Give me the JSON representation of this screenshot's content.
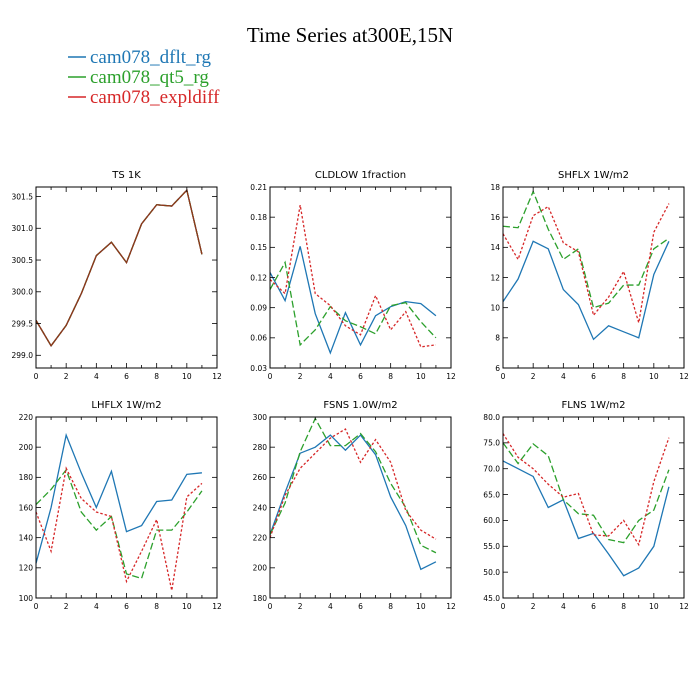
{
  "figure": {
    "title": "Time Series at300E,15N",
    "legend": [
      {
        "name": "cam078_dflt_rg",
        "color": "#1f77b4",
        "dash": "solid"
      },
      {
        "name": "cam078_qt5_rg",
        "color": "#2ca02c",
        "dash": "dashed"
      },
      {
        "name": "cam078_expldiff",
        "color": "#d62728",
        "dash": "dotted"
      }
    ]
  },
  "chart_data": [
    {
      "type": "line",
      "title": "TS   1K",
      "xlim": [
        0,
        12
      ],
      "xticks": [
        "0",
        "2",
        "4",
        "6",
        "8",
        "10",
        "12"
      ],
      "ylim": [
        298.8,
        301.65
      ],
      "yticks": [
        299.0,
        299.5,
        300.0,
        300.5,
        301.0,
        301.5
      ],
      "yticklabels": [
        "299.0",
        "299.5",
        "300.0",
        "300.5",
        "301.0",
        "301.5"
      ],
      "x": [
        0,
        1,
        2,
        3,
        4,
        5,
        6,
        7,
        8,
        9,
        10,
        11
      ],
      "series": [
        {
          "color": "#1f77b4",
          "values": [
            299.55,
            299.15,
            299.47,
            299.97,
            300.57,
            300.78,
            300.46,
            301.07,
            301.37,
            301.35,
            301.6,
            300.59
          ]
        },
        {
          "color": "#2ca02c",
          "values": [
            299.55,
            299.15,
            299.47,
            299.97,
            300.57,
            300.78,
            300.46,
            301.07,
            301.37,
            301.35,
            301.6,
            300.59
          ]
        },
        {
          "color": "#d62728",
          "values": [
            299.55,
            299.15,
            299.47,
            299.97,
            300.57,
            300.78,
            300.46,
            301.07,
            301.37,
            301.35,
            301.6,
            300.59
          ]
        },
        {
          "color": "#8b3a1a",
          "values": [
            299.55,
            299.15,
            299.47,
            299.97,
            300.57,
            300.78,
            300.46,
            301.07,
            301.37,
            301.35,
            301.6,
            300.59
          ]
        }
      ]
    },
    {
      "type": "line",
      "title": "CLDLOW   1fraction",
      "xlim": [
        0,
        12
      ],
      "xticks": [
        "0",
        "2",
        "4",
        "6",
        "8",
        "10",
        "12"
      ],
      "ylim": [
        0.03,
        0.21
      ],
      "yticks": [
        0.03,
        0.06,
        0.09,
        0.12,
        0.15,
        0.18,
        0.21
      ],
      "yticklabels": [
        "0.03",
        "0.06",
        "0.09",
        "0.12",
        "0.15",
        "0.18",
        "0.21"
      ],
      "x": [
        0,
        1,
        2,
        3,
        4,
        5,
        6,
        7,
        8,
        9,
        10,
        11
      ],
      "series": [
        {
          "color": "#1f77b4",
          "values": [
            0.125,
            0.097,
            0.151,
            0.084,
            0.045,
            0.085,
            0.053,
            0.082,
            0.091,
            0.096,
            0.094,
            0.082
          ]
        },
        {
          "color": "#2ca02c",
          "values": [
            0.108,
            0.135,
            0.053,
            0.068,
            0.091,
            0.077,
            0.071,
            0.064,
            0.092,
            0.095,
            0.076,
            0.06
          ]
        },
        {
          "color": "#d62728",
          "values": [
            0.118,
            0.104,
            0.192,
            0.104,
            0.092,
            0.072,
            0.063,
            0.102,
            0.068,
            0.086,
            0.051,
            0.053
          ]
        }
      ]
    },
    {
      "type": "line",
      "title": "SHFLX   1W/m2",
      "xlim": [
        0,
        12
      ],
      "xticks": [
        "0",
        "2",
        "4",
        "6",
        "8",
        "10",
        "12"
      ],
      "ylim": [
        6,
        18
      ],
      "yticks": [
        6,
        8,
        10,
        12,
        14,
        16,
        18
      ],
      "yticklabels": [
        "6",
        "8",
        "10",
        "12",
        "14",
        "16",
        "18"
      ],
      "x": [
        0,
        1,
        2,
        3,
        4,
        5,
        6,
        7,
        8,
        9,
        10,
        11
      ],
      "series": [
        {
          "color": "#1f77b4",
          "values": [
            10.4,
            11.9,
            14.4,
            13.9,
            11.2,
            10.2,
            7.9,
            8.8,
            8.4,
            8.0,
            12.2,
            14.4
          ]
        },
        {
          "color": "#2ca02c",
          "values": [
            15.4,
            15.3,
            17.7,
            15.2,
            13.2,
            13.9,
            10.0,
            10.3,
            11.5,
            11.5,
            13.9,
            14.6
          ]
        },
        {
          "color": "#d62728",
          "values": [
            14.9,
            13.2,
            16.1,
            16.7,
            14.3,
            13.7,
            9.5,
            10.7,
            12.4,
            9.0,
            15.0,
            16.9
          ]
        }
      ]
    },
    {
      "type": "line",
      "title": "LHFLX   1W/m2",
      "xlim": [
        0,
        12
      ],
      "xticks": [
        "0",
        "2",
        "4",
        "6",
        "8",
        "10",
        "12"
      ],
      "ylim": [
        100,
        220
      ],
      "yticks": [
        100,
        120,
        140,
        160,
        180,
        200,
        220
      ],
      "yticklabels": [
        "100",
        "120",
        "140",
        "160",
        "180",
        "200",
        "220"
      ],
      "x": [
        0,
        1,
        2,
        3,
        4,
        5,
        6,
        7,
        8,
        9,
        10,
        11
      ],
      "series": [
        {
          "color": "#1f77b4",
          "values": [
            123,
            160,
            208,
            183,
            160,
            184,
            144,
            148,
            164,
            165,
            182,
            183
          ]
        },
        {
          "color": "#2ca02c",
          "values": [
            162,
            172,
            185,
            157,
            145,
            154,
            116,
            113,
            145,
            145,
            157,
            171
          ]
        },
        {
          "color": "#d62728",
          "values": [
            157,
            131,
            186,
            166,
            157,
            154,
            111,
            131,
            152,
            105,
            167,
            176
          ]
        }
      ]
    },
    {
      "type": "line",
      "title": "FSNS   1.0W/m2",
      "xlim": [
        0,
        12
      ],
      "xticks": [
        "0",
        "2",
        "4",
        "6",
        "8",
        "10",
        "12"
      ],
      "ylim": [
        180,
        300
      ],
      "yticks": [
        180,
        200,
        220,
        240,
        260,
        280,
        300
      ],
      "yticklabels": [
        "180",
        "200",
        "220",
        "240",
        "260",
        "280",
        "300"
      ],
      "x": [
        0,
        1,
        2,
        3,
        4,
        5,
        6,
        7,
        8,
        9,
        10,
        11
      ],
      "series": [
        {
          "color": "#1f77b4",
          "values": [
            222,
            250,
            276,
            280,
            288,
            278,
            288,
            275,
            247,
            228,
            199,
            204
          ]
        },
        {
          "color": "#2ca02c",
          "values": [
            222,
            243,
            277,
            299,
            281,
            281,
            289,
            277,
            256,
            240,
            215,
            210
          ]
        },
        {
          "color": "#d62728",
          "values": [
            220,
            248,
            266,
            276,
            286,
            292,
            270,
            285,
            270,
            238,
            225,
            219
          ]
        }
      ]
    },
    {
      "type": "line",
      "title": "FLNS   1W/m2",
      "xlim": [
        0,
        12
      ],
      "xticks": [
        "0",
        "2",
        "4",
        "6",
        "8",
        "10",
        "12"
      ],
      "ylim": [
        45,
        80
      ],
      "yticks": [
        45,
        50,
        55,
        60,
        65,
        70,
        75,
        80
      ],
      "yticklabels": [
        "45.0",
        "50.0",
        "55.0",
        "60.0",
        "65.0",
        "70.0",
        "75.0",
        "80.0"
      ],
      "x": [
        0,
        1,
        2,
        3,
        4,
        5,
        6,
        7,
        8,
        9,
        10,
        11
      ],
      "series": [
        {
          "color": "#1f77b4",
          "values": [
            71.5,
            70.0,
            68.5,
            62.5,
            64.0,
            56.5,
            57.5,
            53.5,
            49.3,
            50.8,
            55.0,
            66.5
          ]
        },
        {
          "color": "#2ca02c",
          "values": [
            75.0,
            71.0,
            74.8,
            72.5,
            64.0,
            61.3,
            61.0,
            56.3,
            55.7,
            60.0,
            62.0,
            69.8
          ]
        },
        {
          "color": "#d62728",
          "values": [
            76.8,
            72.2,
            70.0,
            67.0,
            64.5,
            65.2,
            57.2,
            57.0,
            60.0,
            55.3,
            67.5,
            76.0
          ]
        }
      ]
    }
  ]
}
